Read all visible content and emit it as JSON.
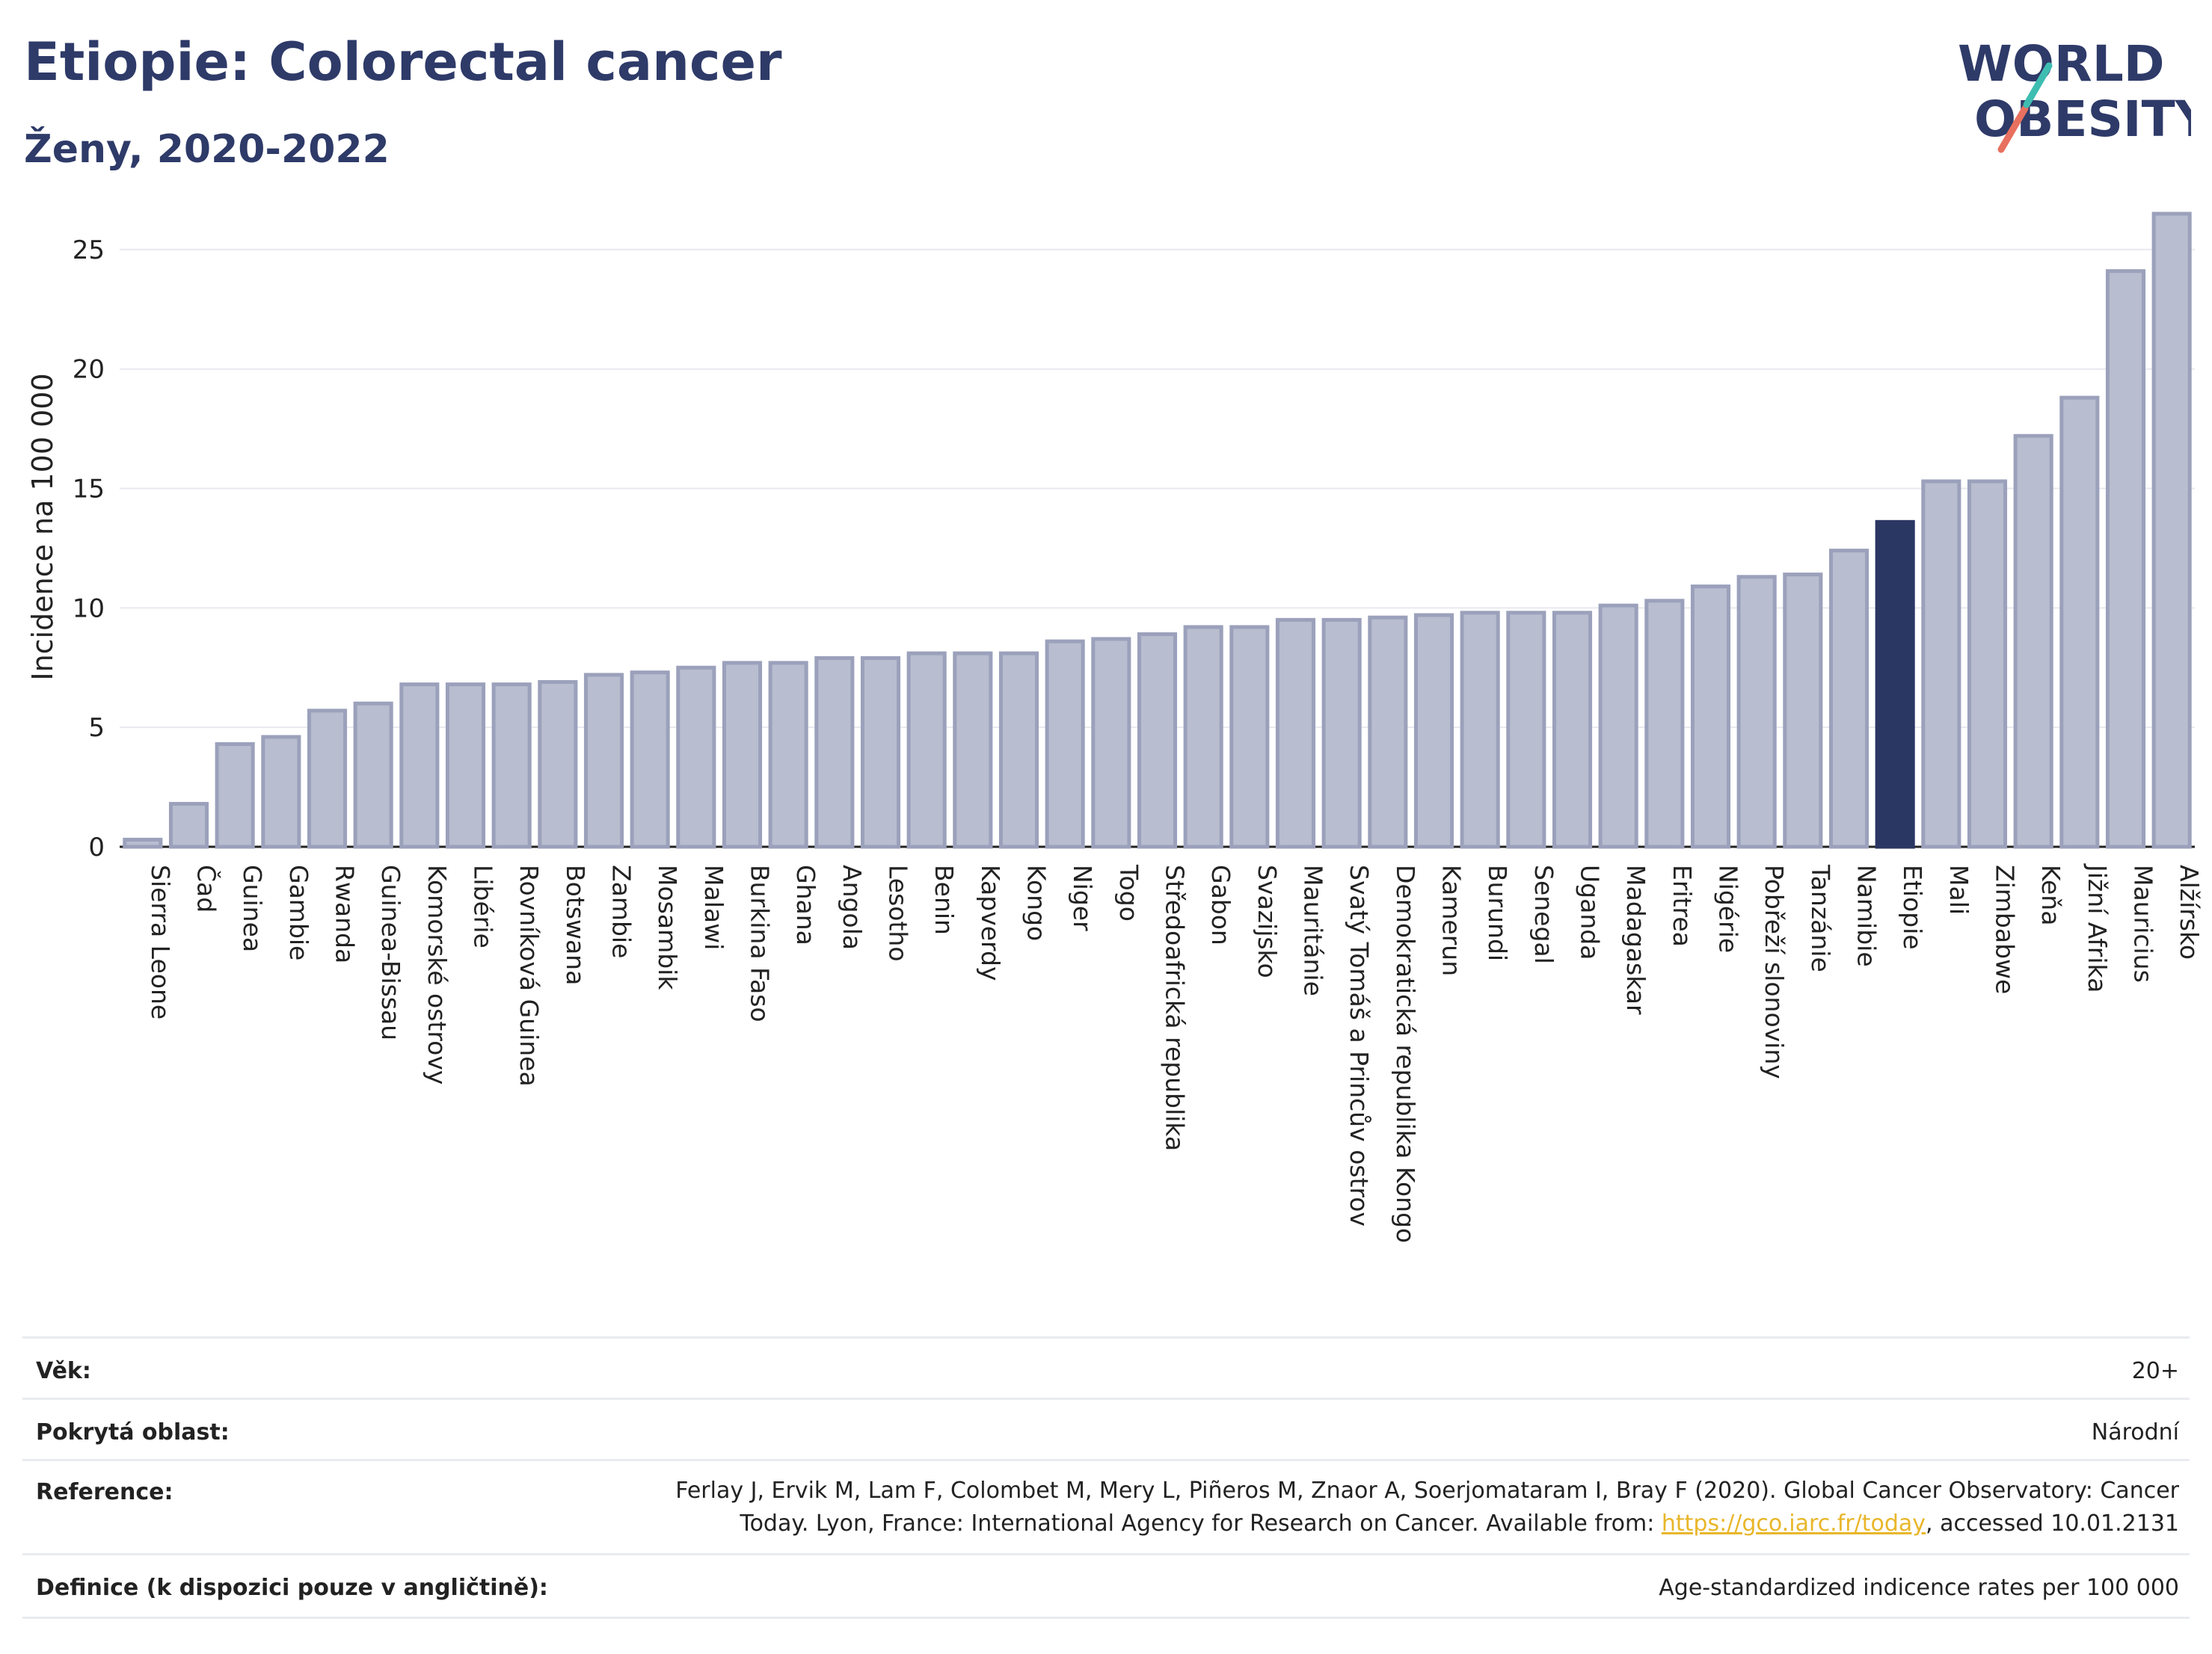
{
  "header": {
    "title": "Etiopie: Colorectal cancer",
    "subtitle": "Ženy, 2020-2022"
  },
  "logo": {
    "line1": "WORLD",
    "line2": "OBESITY"
  },
  "colors": {
    "bar": "#b8bdcf",
    "bar_stroke": "#9ba1bb",
    "highlight": "#2b3763",
    "grid": "#e8e9ef"
  },
  "chart_data": {
    "type": "bar",
    "categories": [
      "Sierra Leone",
      "Čad",
      "Guinea",
      "Gambie",
      "Rwanda",
      "Guinea-Bissau",
      "Komorské ostrovy",
      "Libérie",
      "Rovníková Guinea",
      "Botswana",
      "Zambie",
      "Mosambik",
      "Malawi",
      "Burkina Faso",
      "Ghana",
      "Angola",
      "Lesotho",
      "Benin",
      "Kapverdy",
      "Kongo",
      "Niger",
      "Togo",
      "Středoafrická republika",
      "Gabon",
      "Svazijsko",
      "Mauritánie",
      "Svatý Tomáš a Princův ostrov",
      "Demokratická republika Kongo",
      "Kamerun",
      "Burundi",
      "Senegal",
      "Uganda",
      "Madagaskar",
      "Eritrea",
      "Nigérie",
      "Pobřeží slonoviny",
      "Tanzánie",
      "Namibie",
      "Etiopie",
      "Mali",
      "Zimbabwe",
      "Keňa",
      "Jižní Afrika",
      "Mauricius",
      "Alžírsko"
    ],
    "values": [
      0.3,
      1.8,
      4.3,
      4.6,
      5.7,
      6.0,
      6.8,
      6.8,
      6.8,
      6.9,
      7.2,
      7.3,
      7.5,
      7.7,
      7.7,
      7.9,
      7.9,
      8.1,
      8.1,
      8.1,
      8.6,
      8.7,
      8.9,
      9.2,
      9.2,
      9.5,
      9.5,
      9.6,
      9.7,
      9.8,
      9.8,
      9.8,
      10.1,
      10.3,
      10.9,
      11.3,
      11.4,
      12.4,
      13.6,
      15.3,
      15.3,
      17.2,
      18.8,
      24.1,
      26.5
    ],
    "highlight": "Etiopie",
    "ylabel": "Incidence na 100 000",
    "xlabel": "",
    "ylim": [
      0,
      27
    ],
    "yticks": [
      0,
      5,
      10,
      15,
      20,
      25
    ],
    "grid": true
  },
  "meta": {
    "age_label": "Věk:",
    "age_value": "20+",
    "area_label": "Pokrytá oblast:",
    "area_value": "Národní",
    "ref_label": "Reference:",
    "ref_text_1": "Ferlay J, Ervik M, Lam F, Colombet M, Mery L, Piñeros M, Znaor A, Soerjomataram I, Bray F (2020). Global Cancer Observatory: Cancer Today. Lyon, France: International Agency for Research on Cancer. Available from: ",
    "ref_link": "https://gco.iarc.fr/today",
    "ref_text_2": ", accessed 10.01.2131",
    "def_label": "Definice (k dispozici pouze v angličtině):",
    "def_value": "Age-standardized indicence rates per 100 000"
  }
}
